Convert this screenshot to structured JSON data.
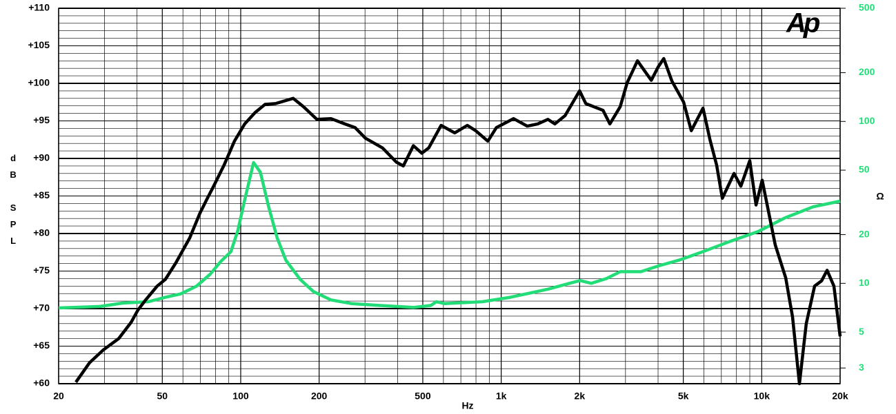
{
  "chart_data": {
    "type": "line",
    "logo": "Ap",
    "x_label": "Hz",
    "y_label": "dB SPL",
    "y2_label": "Ω",
    "xscale": "log",
    "y2scale": "log",
    "grid": true,
    "xlim": [
      20,
      20000
    ],
    "xticks": [
      20,
      50,
      100,
      200,
      500,
      {
        "value": 1000,
        "label": "1k"
      },
      {
        "value": 2000,
        "label": "2k"
      },
      {
        "value": 5000,
        "label": "5k"
      },
      {
        "value": 10000,
        "label": "10k"
      },
      {
        "value": 20000,
        "label": "20k"
      }
    ],
    "x_minor_ticks": [
      30,
      40,
      60,
      70,
      80,
      90,
      300,
      400,
      600,
      700,
      800,
      900,
      3000,
      4000,
      6000,
      7000,
      8000,
      9000
    ],
    "ylim": [
      60,
      110
    ],
    "yticks": [
      {
        "value": 60,
        "label": "+60"
      },
      {
        "value": 65,
        "label": "+65"
      },
      {
        "value": 70,
        "label": "+70"
      },
      {
        "value": 75,
        "label": "+75"
      },
      {
        "value": 80,
        "label": "+80"
      },
      {
        "value": 85,
        "label": "+85"
      },
      {
        "value": 90,
        "label": "+90"
      },
      {
        "value": 95,
        "label": "+95"
      },
      {
        "value": 100,
        "label": "+100"
      },
      {
        "value": 105,
        "label": "+105"
      },
      {
        "value": 110,
        "label": "+110"
      }
    ],
    "y_minor_ticks": [
      61,
      62,
      63,
      64,
      66,
      67,
      68,
      69,
      71,
      72,
      73,
      74,
      76,
      77,
      78,
      79,
      81,
      82,
      83,
      84,
      86,
      87,
      88,
      89,
      91,
      92,
      93,
      94,
      96,
      97,
      98,
      99,
      101,
      102,
      103,
      104,
      106,
      107,
      108,
      109
    ],
    "y2lim": [
      2.4,
      500
    ],
    "y2ticks": [
      3,
      5,
      10,
      20,
      50,
      100,
      200,
      500
    ],
    "series": [
      {
        "name": "SPL",
        "color": "#000000",
        "x": [
          23.3,
          26.3,
          29.7,
          34,
          38,
          40.3,
          42.8,
          47.8,
          51.4,
          56.4,
          63.7,
          69.7,
          74,
          78.7,
          86.3,
          94.6,
          103.6,
          113.5,
          124,
          136,
          159,
          174,
          196,
          222,
          251,
          275,
          301,
          350,
          396,
          421,
          460,
          496,
          527,
          588,
          663,
          741,
          798,
          889,
          958,
          1115,
          1259,
          1380,
          1511,
          1607,
          1758,
          2000,
          2113,
          2460,
          2614,
          2864,
          3046,
          3336,
          3767,
          4006,
          4208,
          4522,
          5014,
          5366,
          5951,
          6328,
          6717,
          7061,
          7830,
          8318,
          9000,
          9510,
          10040,
          11270,
          12360,
          13130,
          13960,
          14830,
          15960,
          16970,
          17820,
          18930,
          20000
        ],
        "values": [
          60.2,
          62.8,
          64.5,
          66.0,
          68.2,
          69.8,
          71.0,
          73.0,
          73.9,
          76.1,
          79.4,
          82.7,
          84.5,
          86.3,
          89.1,
          92.3,
          94.6,
          96.1,
          97.2,
          97.3,
          98.0,
          96.9,
          95.2,
          95.3,
          94.6,
          94.1,
          92.7,
          91.4,
          89.5,
          89.0,
          91.7,
          90.7,
          91.4,
          94.4,
          93.4,
          94.4,
          93.7,
          92.3,
          94.1,
          95.3,
          94.3,
          94.6,
          95.2,
          94.6,
          95.7,
          99.0,
          97.3,
          96.4,
          94.6,
          96.9,
          100.1,
          103.0,
          100.4,
          102.2,
          103.3,
          100.3,
          97.5,
          93.7,
          96.7,
          92.5,
          89.1,
          84.7,
          88.0,
          86.3,
          89.7,
          83.8,
          87.1,
          78.5,
          74.1,
          68.9,
          60.0,
          68.0,
          73.0,
          73.7,
          75.1,
          73.0,
          66.3
        ]
      },
      {
        "name": "Impedance",
        "color": "#22dd77",
        "axis": "y2",
        "x": [
          20,
          28.8,
          35.2,
          44.2,
          51.4,
          58.8,
          67.6,
          76.4,
          83.7,
          91.7,
          97.4,
          103.6,
          112,
          119,
          128,
          138,
          149,
          169,
          190,
          222,
          266,
          340,
          460,
          537,
          564,
          605,
          847,
          1082,
          1511,
          1870,
          2011,
          2217,
          2535,
          2864,
          3438,
          4006,
          4808,
          5951,
          7586,
          9680,
          12360,
          15760,
          20000
        ],
        "values": [
          7.05,
          7.2,
          7.55,
          7.7,
          8.2,
          8.6,
          9.6,
          11.4,
          13.6,
          15.7,
          21.1,
          32.8,
          55.7,
          48.5,
          29.7,
          19.1,
          13.9,
          10.6,
          8.9,
          7.9,
          7.5,
          7.3,
          7.1,
          7.3,
          7.7,
          7.5,
          7.7,
          8.2,
          9.2,
          10.1,
          10.4,
          10.0,
          10.7,
          11.8,
          11.8,
          12.8,
          13.9,
          15.7,
          18.2,
          20.9,
          25.5,
          29.7,
          32.2
        ]
      }
    ]
  }
}
